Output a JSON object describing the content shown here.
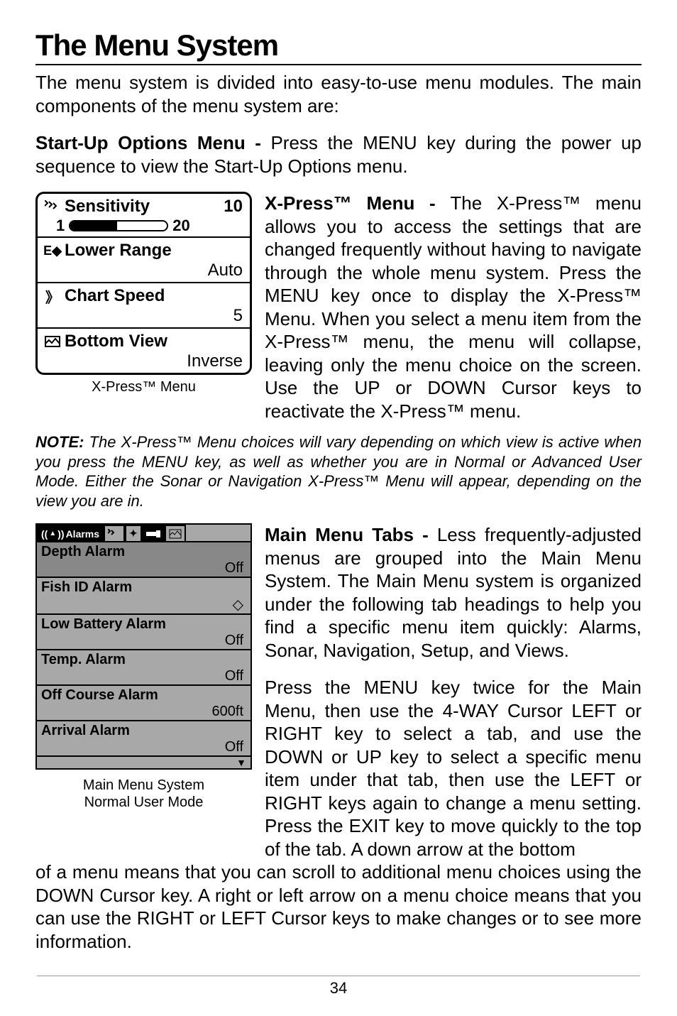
{
  "title": "The Menu System",
  "intro": "The menu system is divided into easy-to-use menu modules. The main components of the menu system are:",
  "startup_label": "Start-Up Options Menu - ",
  "startup_text": "Press the MENU key during the power up sequence to view the Start-Up Options menu.",
  "xpress_label": "X-Press™ Menu - ",
  "xpress_text": "The X-Press™ menu allows you to access the settings that are changed frequently without having to navigate through the whole menu system. Press the MENU key once to display the X-Press™ Menu. When you select a menu item from the X-Press™ menu, the menu will collapse, leaving only the menu choice on the screen. Use the UP or DOWN Cursor keys to reactivate the X-Press™ menu.",
  "xpress_menu": {
    "caption": "X-Press™ Menu",
    "rows": [
      {
        "label": "Sensitivity",
        "top_val": "10",
        "bottom_left": "1",
        "bottom_right": "20",
        "slider": true
      },
      {
        "label": "Lower Range",
        "bottom_right": "Auto"
      },
      {
        "label": "Chart Speed",
        "bottom_right": "5"
      },
      {
        "label": "Bottom View",
        "bottom_right": "Inverse"
      }
    ]
  },
  "note_lead": "NOTE: ",
  "note_text": "The X-Press™ Menu choices will vary depending on which view is active when you press the MENU key, as well as whether you are in Normal or Advanced User Mode. Either the Sonar or Navigation X-Press™ Menu will appear, depending on the view you are in.",
  "main_label": "Main Menu Tabs - ",
  "main_text1": "Less frequently-adjusted menus are grouped into the Main Menu System. The Main Menu system is organized under the following tab headings to help you find a specific menu item quickly: Alarms, Sonar, Navigation, Setup, and Views.",
  "main_text2": "Press the MENU key twice for the Main Menu, then use the 4-WAY Cursor LEFT or RIGHT key to select a tab, and use the DOWN or UP key to select a specific menu item under that tab, then use the LEFT or RIGHT keys again to change a menu setting. Press the EXIT key to move quickly to the top of the tab. A down arrow at the bottom",
  "main_text3": "of a menu means that you can scroll to additional menu choices using the DOWN Cursor key. A right or left arrow on a menu choice means that you can use the RIGHT or LEFT Cursor keys to make changes or to see more information.",
  "main_menu": {
    "caption_l1": "Main Menu System",
    "caption_l2": "Normal User Mode",
    "active_tab": "Alarms",
    "rows": [
      {
        "label": "Depth Alarm",
        "val": "Off",
        "sel": true
      },
      {
        "label": "Fish ID Alarm",
        "val": "◇"
      },
      {
        "label": "Low Battery Alarm",
        "val": "Off"
      },
      {
        "label": "Temp. Alarm",
        "val": "Off"
      },
      {
        "label": "Off Course Alarm",
        "val": "600ft"
      },
      {
        "label": "Arrival Alarm",
        "val": "Off"
      }
    ]
  },
  "page_number": "34",
  "colors": {
    "gray": "#a8a8a8"
  }
}
